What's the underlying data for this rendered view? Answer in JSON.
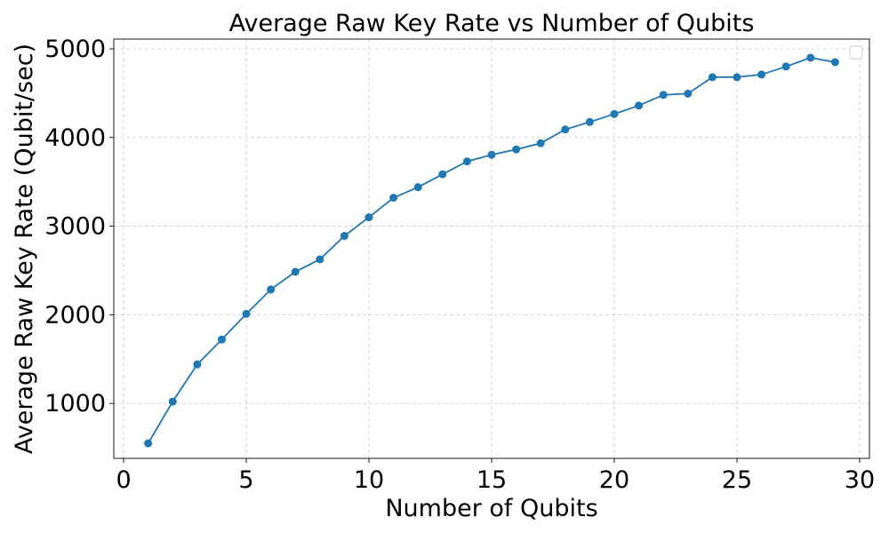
{
  "chart_data": {
    "type": "line",
    "title": "Average Raw Key Rate vs Number of Qubits",
    "xlabel": "Number of Qubits",
    "ylabel": "Average Raw Key Rate (Qubit/sec)",
    "xlim": [
      -0.4,
      30.4
    ],
    "ylim": [
      380,
      5110
    ],
    "xticks": [
      0,
      5,
      10,
      15,
      20,
      25,
      30
    ],
    "yticks": [
      1000,
      2000,
      3000,
      4000,
      5000
    ],
    "grid": true,
    "legend": "top-right, empty",
    "series": [
      {
        "color": "#1f77b4",
        "marker": "circle",
        "x": [
          1,
          2,
          3,
          4,
          5,
          6,
          7,
          8,
          9,
          10,
          11,
          12,
          13,
          14,
          15,
          16,
          17,
          18,
          19,
          20,
          21,
          22,
          23,
          24,
          25,
          26,
          27,
          28,
          29
        ],
        "y": [
          550,
          1020,
          1440,
          1720,
          2010,
          2285,
          2485,
          2625,
          2890,
          3100,
          3320,
          3440,
          3585,
          3730,
          3805,
          3865,
          3935,
          4090,
          4175,
          4265,
          4360,
          4480,
          4495,
          4680,
          4680,
          4710,
          4800,
          4900,
          4850
        ]
      }
    ]
  }
}
